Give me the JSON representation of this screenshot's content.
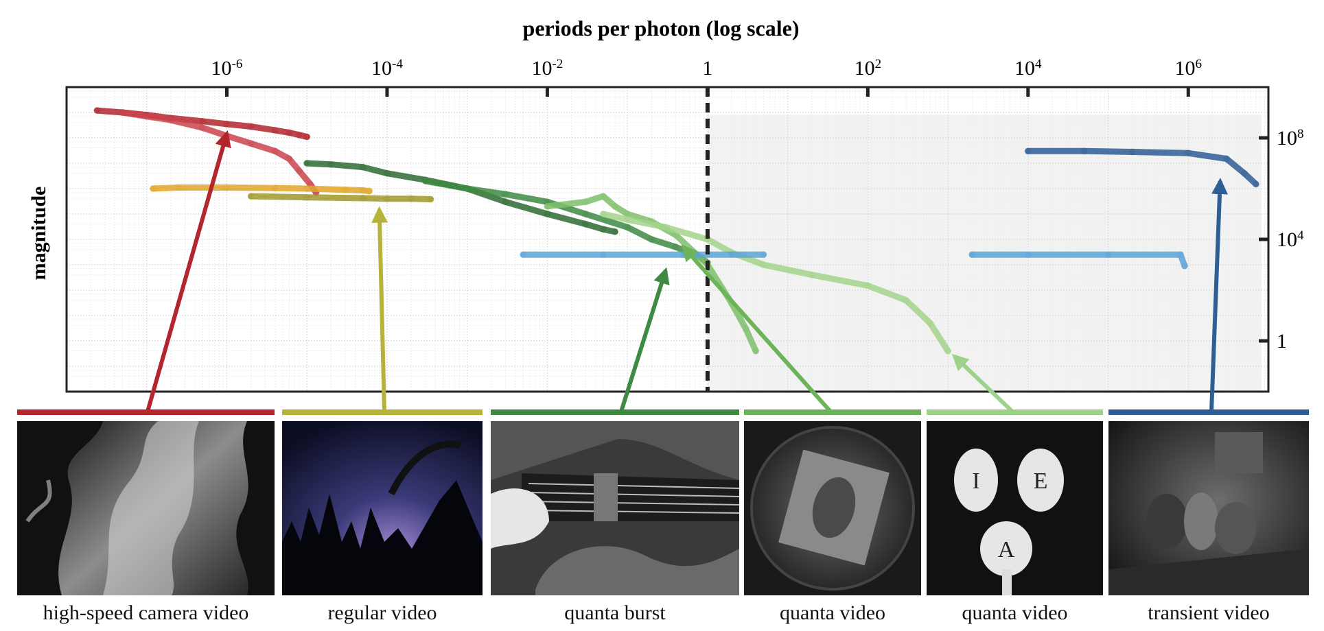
{
  "chart_data": {
    "type": "scatter",
    "title": "",
    "xlabel": "periods per photon (log scale)",
    "ylabel": "magnitude",
    "x_scale": "log",
    "y_scale": "log",
    "xlim": [
      1e-08,
      10000000.0
    ],
    "ylim": [
      0.01,
      10000000000.0
    ],
    "x_ticks": [
      {
        "value": 1e-06,
        "base": "10",
        "exp": "-6"
      },
      {
        "value": 0.0001,
        "base": "10",
        "exp": "-4"
      },
      {
        "value": 0.01,
        "base": "10",
        "exp": "-2"
      },
      {
        "value": 1,
        "base": "1",
        "exp": ""
      },
      {
        "value": 100.0,
        "base": "10",
        "exp": "2"
      },
      {
        "value": 10000.0,
        "base": "10",
        "exp": "4"
      },
      {
        "value": 1000000.0,
        "base": "10",
        "exp": "6"
      }
    ],
    "y_ticks": [
      {
        "value": 100000000.0,
        "base": "10",
        "exp": "8"
      },
      {
        "value": 10000.0,
        "base": "10",
        "exp": "4"
      },
      {
        "value": 1,
        "base": "1",
        "exp": ""
      }
    ],
    "grid": true,
    "reference_line_x": 1,
    "shaded_region_x": [
      1,
      10000000.0
    ],
    "series": [
      {
        "color": "#b3262e",
        "x": [
          2.4e-08,
          5e-08,
          1e-07,
          2e-07,
          5e-07,
          1e-06,
          2e-06,
          4e-06,
          6e-06,
          8e-06,
          1e-05
        ],
        "y": [
          1200000000.0,
          1000000000.0,
          800000000.0,
          600000000.0,
          450000000.0,
          350000000.0,
          280000000.0,
          200000000.0,
          160000000.0,
          130000000.0,
          110000000.0
        ]
      },
      {
        "color": "#c9444c",
        "x": [
          5e-08,
          1e-07,
          2e-07,
          5e-07,
          1e-06,
          2e-06,
          4e-06,
          6e-06,
          8e-06,
          1.1e-05,
          1.3e-05
        ],
        "y": [
          1000000000.0,
          700000000.0,
          500000000.0,
          250000000.0,
          120000000.0,
          60000000.0,
          30000000.0,
          15000000.0,
          5000000.0,
          1500000.0,
          700000.0
        ]
      },
      {
        "color": "#e0a62a",
        "x": [
          1.2e-07,
          2.5e-07,
          1e-06,
          4e-06,
          1e-05,
          3e-05,
          5e-05,
          6e-05
        ],
        "y": [
          1000000.0,
          1100000.0,
          1100000.0,
          1050000.0,
          1000000.0,
          900000.0,
          850000.0,
          800000.0
        ]
      },
      {
        "color": "#9f9a2c",
        "x": [
          2e-06,
          1e-05,
          5e-05,
          0.0001,
          0.0002,
          0.00035
        ],
        "y": [
          500000.0,
          450000.0,
          420000.0,
          400000.0,
          400000.0,
          380000.0
        ]
      },
      {
        "color": "#2f6b34",
        "x": [
          1e-05,
          2e-05,
          5e-05,
          0.0001,
          0.0003,
          0.001,
          0.003,
          0.01,
          0.03,
          0.05,
          0.07
        ],
        "y": [
          10000000.0,
          9000000.0,
          7000000.0,
          4000000.0,
          2200000.0,
          1000000.0,
          300000.0,
          100000.0,
          40000.0,
          25000.0,
          20000.0
        ]
      },
      {
        "color": "#3f8a43",
        "x": [
          0.0003,
          0.001,
          0.003,
          0.01,
          0.03,
          0.1,
          0.2,
          0.4,
          0.8,
          1.0
        ],
        "y": [
          2000000.0,
          1000000.0,
          600000.0,
          300000.0,
          100000.0,
          30000.0,
          10000.0,
          5000.0,
          2000.0,
          1200.0
        ]
      },
      {
        "color": "#7fc06b",
        "x": [
          0.01,
          0.03,
          0.05,
          0.07,
          0.1,
          0.2,
          0.4,
          1.0,
          2.0,
          3.0,
          4.0
        ],
        "y": [
          200000.0,
          300000.0,
          500000.0,
          200000.0,
          100000.0,
          50000.0,
          15000.0,
          1000.0,
          30,
          3,
          0.4
        ]
      },
      {
        "color": "#a3d38c",
        "x": [
          0.05,
          0.1,
          0.3,
          1.0,
          2.0,
          5.0,
          20.0,
          100.0,
          300.0,
          600.0,
          1000.0
        ],
        "y": [
          100000.0,
          60000.0,
          30000.0,
          10000.0,
          3000.0,
          1000.0,
          400,
          150,
          40,
          5,
          0.4
        ]
      },
      {
        "color": "#5aa3d8",
        "x": [
          0.005,
          0.05,
          0.5,
          2.0,
          5.0
        ],
        "y": [
          2500,
          2500,
          2500,
          2500,
          2500
        ]
      },
      {
        "color": "#5aa3d8",
        "x": [
          2000.0,
          10000.0,
          100000.0,
          800000.0,
          900000.0
        ],
        "y": [
          2500,
          2500,
          2500,
          2500,
          900
        ]
      },
      {
        "color": "#2f5e94",
        "x": [
          10000.0,
          50000.0,
          200000.0,
          1000000.0,
          3000000.0,
          5000000.0,
          7000000.0
        ],
        "y": [
          30000000.0,
          30000000.0,
          28000000.0,
          25000000.0,
          15000000.0,
          4000000.0,
          1500000.0
        ]
      }
    ]
  },
  "panels": [
    {
      "label": "high-speed camera video",
      "color": "#b3262e",
      "icon": "flames-thumbnail"
    },
    {
      "label": "regular video",
      "color": "#b7b23a",
      "icon": "night-sky-trees-thumbnail"
    },
    {
      "label": "quanta burst",
      "color": "#3f8a43",
      "icon": "electric-guitar-thumbnail"
    },
    {
      "label": "quanta video",
      "color": "#6cb35a",
      "icon": "rotating-fan-card-thumbnail"
    },
    {
      "label": "quanta video",
      "color": "#9ed28a",
      "icon": "spinning-letters-fan-thumbnail"
    },
    {
      "label": "transient video",
      "color": "#2f5e94",
      "icon": "tabletop-scene-thumbnail"
    }
  ]
}
